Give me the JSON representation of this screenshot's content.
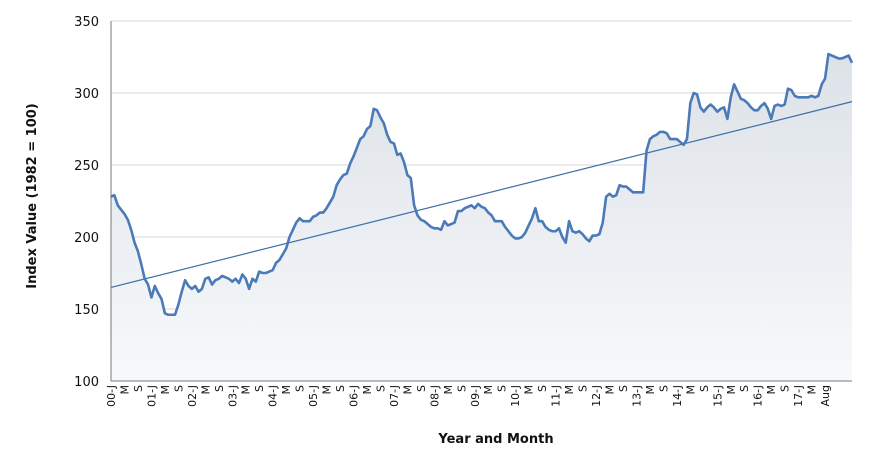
{
  "chart_data": {
    "type": "line",
    "title": "",
    "xlabel": "Year and Month",
    "ylabel": "Index Value (1982 = 100)",
    "ylim": [
      100,
      350
    ],
    "yticks": [
      100,
      150,
      200,
      250,
      300,
      350
    ],
    "x_tick_labels": [
      "00-J",
      "M",
      "S",
      "01-J",
      "M",
      "S",
      "02-J",
      "M",
      "S",
      "03-J",
      "M",
      "S",
      "04-J",
      "M",
      "S",
      "05-J",
      "M",
      "S",
      "06-J",
      "M",
      "S",
      "07-J",
      "M",
      "S",
      "08-J",
      "M",
      "S",
      "09-J",
      "M",
      "S",
      "10-J",
      "M",
      "S",
      "11-J",
      "M",
      "S",
      "12-J",
      "M",
      "S",
      "13-J",
      "M",
      "S",
      "14-J",
      "M",
      "S",
      "15-J",
      "M",
      "S",
      "16-J",
      "M",
      "S",
      "17-J",
      "M",
      "Aug"
    ],
    "grid": {
      "horizontal": true,
      "vertical": false
    },
    "legend": "none",
    "colors": {
      "line": "#4a7ab8",
      "trend": "#3f6ea8",
      "fill_top": "#dde2e8",
      "fill_bottom": "#f7f9fb",
      "grid": "#d8d8d8"
    },
    "series": [
      {
        "values": [
          228,
          229,
          222,
          219,
          216,
          212,
          205,
          196,
          190,
          181,
          171,
          167,
          158,
          166,
          161,
          157,
          147,
          146,
          146,
          146,
          153,
          162,
          170,
          166,
          164,
          166,
          162,
          164,
          171,
          172,
          167,
          170,
          171,
          173,
          172,
          171,
          169,
          171,
          168,
          174,
          171,
          164,
          171,
          169,
          176,
          175,
          175,
          176,
          177,
          182,
          184,
          188,
          192,
          200,
          205,
          210,
          213,
          211,
          211,
          211,
          214,
          215,
          217,
          217,
          220,
          224,
          228,
          236,
          240,
          243,
          244,
          251,
          256,
          262,
          268,
          270,
          275,
          277,
          289,
          288,
          283,
          279,
          271,
          266,
          265,
          257,
          258,
          252,
          243,
          241,
          222,
          215,
          212,
          211,
          209,
          207,
          206,
          206,
          205,
          211,
          208,
          209,
          210,
          218,
          218,
          220,
          221,
          222,
          220,
          223,
          221,
          220,
          217,
          215,
          211,
          211,
          211,
          207,
          204,
          201,
          199,
          199,
          200,
          203,
          208,
          213,
          220,
          211,
          211,
          207,
          205,
          204,
          204,
          206,
          200,
          196,
          211,
          204,
          203,
          204,
          202,
          199,
          197,
          201,
          201,
          202,
          210,
          228,
          230,
          228,
          229,
          236,
          235,
          235,
          233,
          231,
          231,
          231,
          231,
          260,
          268,
          270,
          271,
          273,
          273,
          272,
          268,
          268,
          268,
          266,
          264,
          268,
          293,
          300,
          299,
          290,
          287,
          290,
          292,
          290,
          287,
          289,
          290,
          282,
          297,
          306,
          301,
          296,
          295,
          293,
          290,
          288,
          288,
          291,
          293,
          289,
          282,
          291,
          292,
          291,
          292,
          303,
          302,
          298,
          297,
          297,
          297,
          297,
          298,
          297,
          298,
          306,
          310,
          327,
          326,
          325,
          324,
          324,
          325,
          326,
          321
        ]
      },
      {
        "name": "",
        "trend": [
          165,
          294
        ]
      }
    ]
  }
}
